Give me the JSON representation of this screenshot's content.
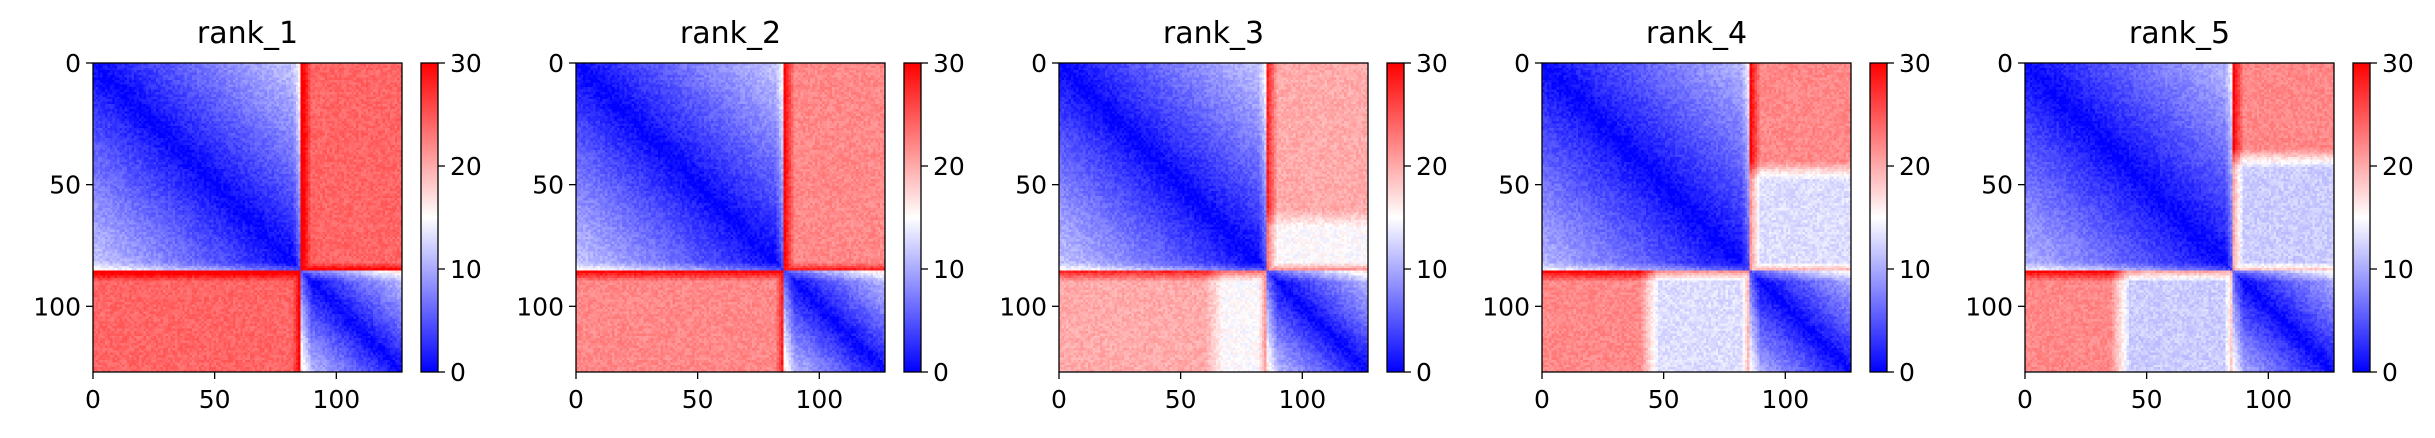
{
  "figure": {
    "description_type": "distance heatmaps with colorbars",
    "colormap": "bwr",
    "colors": {
      "low": "#0000ff",
      "mid": "#ffffff",
      "high": "#ff0000"
    }
  },
  "chart_data": [
    {
      "type": "heatmap",
      "title": "rank_1",
      "matrix_size": 128,
      "x_ticks": [
        0,
        50,
        100
      ],
      "y_ticks": [
        0,
        50,
        100
      ],
      "xlim": [
        0,
        127
      ],
      "ylim": [
        127,
        0
      ],
      "colorbar": {
        "range": [
          0,
          30
        ],
        "ticks": [
          0,
          10,
          20,
          30
        ]
      },
      "structure": {
        "domain_boundary": 86,
        "diagonal_value": 0,
        "intra_block_far_value": 12,
        "cross_block_value": 24,
        "off_block_low_value": null,
        "off_block_low_extent": [
          0,
          0
        ]
      }
    },
    {
      "type": "heatmap",
      "title": "rank_2",
      "matrix_size": 128,
      "x_ticks": [
        0,
        50,
        100
      ],
      "y_ticks": [
        0,
        50,
        100
      ],
      "xlim": [
        0,
        127
      ],
      "ylim": [
        127,
        0
      ],
      "colorbar": {
        "range": [
          0,
          30
        ],
        "ticks": [
          0,
          10,
          20,
          30
        ]
      },
      "structure": {
        "domain_boundary": 86,
        "diagonal_value": 0,
        "intra_block_far_value": 12,
        "cross_block_value": 22,
        "off_block_low_value": null,
        "off_block_low_extent": [
          0,
          0
        ]
      }
    },
    {
      "type": "heatmap",
      "title": "rank_3",
      "matrix_size": 128,
      "x_ticks": [
        0,
        50,
        100
      ],
      "y_ticks": [
        0,
        50,
        100
      ],
      "xlim": [
        0,
        127
      ],
      "ylim": [
        127,
        0
      ],
      "colorbar": {
        "range": [
          0,
          30
        ],
        "ticks": [
          0,
          10,
          20,
          30
        ]
      },
      "structure": {
        "domain_boundary": 86,
        "diagonal_value": 0,
        "intra_block_far_value": 12,
        "cross_block_value": 20,
        "off_block_low_value": 15,
        "off_block_low_extent": [
          60,
          86
        ]
      }
    },
    {
      "type": "heatmap",
      "title": "rank_4",
      "matrix_size": 128,
      "x_ticks": [
        0,
        50,
        100
      ],
      "y_ticks": [
        0,
        50,
        100
      ],
      "xlim": [
        0,
        127
      ],
      "ylim": [
        127,
        0
      ],
      "colorbar": {
        "range": [
          0,
          30
        ],
        "ticks": [
          0,
          10,
          20,
          30
        ]
      },
      "structure": {
        "domain_boundary": 86,
        "diagonal_value": 0,
        "intra_block_far_value": 11,
        "cross_block_value": 22,
        "off_block_low_value": 13,
        "off_block_low_extent": [
          40,
          86
        ]
      }
    },
    {
      "type": "heatmap",
      "title": "rank_5",
      "matrix_size": 128,
      "x_ticks": [
        0,
        50,
        100
      ],
      "y_ticks": [
        0,
        50,
        100
      ],
      "xlim": [
        0,
        127
      ],
      "ylim": [
        127,
        0
      ],
      "colorbar": {
        "range": [
          0,
          30
        ],
        "ticks": [
          0,
          10,
          20,
          30
        ]
      },
      "structure": {
        "domain_boundary": 86,
        "diagonal_value": 0,
        "intra_block_far_value": 11,
        "cross_block_value": 22,
        "off_block_low_value": 12,
        "off_block_low_extent": [
          35,
          86
        ]
      }
    }
  ]
}
